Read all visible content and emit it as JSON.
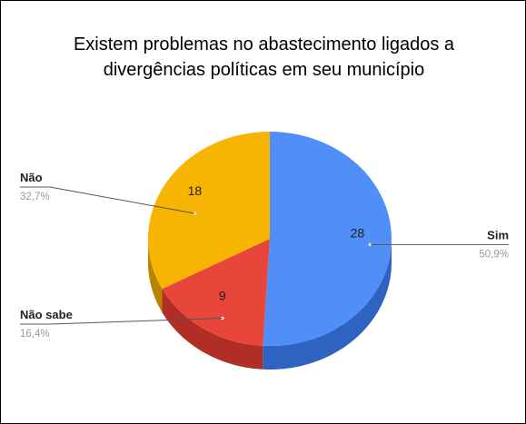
{
  "chart_data": {
    "type": "pie",
    "style": "3d",
    "title_lines": [
      "Existem problemas no abastecimento ligados a",
      "divergências políticas em seu município"
    ],
    "slices": [
      {
        "label": "Sim",
        "value": 28,
        "percent": "50,9%",
        "color": "#4f8ff7",
        "side_color": "#2f63c2"
      },
      {
        "label": "Não sabe",
        "value": 9,
        "percent": "16,4%",
        "color": "#e8463a",
        "side_color": "#b02e25"
      },
      {
        "label": "Não",
        "value": 18,
        "percent": "32,7%",
        "color": "#f7b400",
        "side_color": "#b88400"
      }
    ],
    "legend": "none",
    "label_style": "callout"
  }
}
